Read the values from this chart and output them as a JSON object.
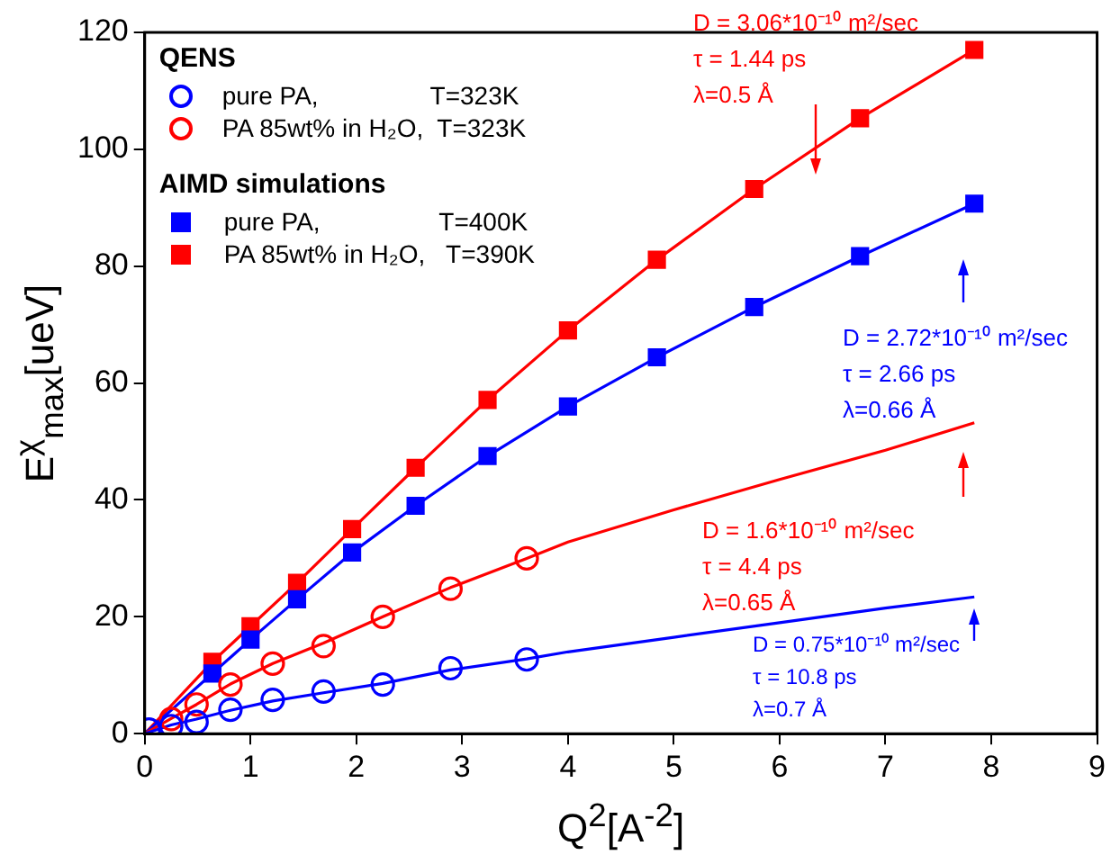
{
  "chart_data": {
    "type": "scatter",
    "xlabel": "Q$^{2}$[A$^{-2}$]",
    "ylabel": "E$^{χ}$$_{max}$[ueV]",
    "xlim": [
      0,
      9
    ],
    "xticks": [
      0,
      1,
      2,
      3,
      4,
      5,
      6,
      7,
      8,
      9
    ],
    "ylim": [
      0,
      120
    ],
    "yticks": [
      0,
      20,
      40,
      60,
      80,
      100,
      120
    ],
    "grid": false,
    "legend": "top left",
    "legend_title": "QENS",
    "series": [
      {
        "name": "pure PA,                T=323K",
        "type": "scatter",
        "marker": "circle",
        "color": "#0000ff",
        "x": [
          0.04,
          0.25,
          0.49,
          0.81,
          1.21,
          1.69,
          2.25,
          2.89,
          3.61
        ],
        "values": [
          0.7,
          1.3,
          2,
          4.1,
          5.8,
          7.2,
          8.4,
          11.2,
          12.7
        ]
      },
      {
        "name": "PA 85wt% in H₂O,  T=323K",
        "type": "scatter",
        "marker": "circle",
        "color": "#ff0000",
        "x": [
          0.25,
          0.49,
          0.81,
          1.21,
          1.69,
          2.25,
          2.89,
          3.61
        ],
        "values": [
          2.5,
          5,
          8.4,
          12,
          15,
          20,
          24.8,
          30
        ]
      },
      {
        "name": "pure PA,                 T=400K",
        "type": "scatter",
        "marker": "square",
        "color": "#0000ff",
        "x": [
          0.64,
          1,
          1.44,
          1.96,
          2.56,
          3.24,
          4,
          4.84,
          5.76,
          6.76,
          7.84
        ],
        "values": [
          10.3,
          16.1,
          23,
          31,
          39,
          47.5,
          56,
          64.4,
          73,
          81.7,
          90.7
        ]
      },
      {
        "name": "PA 85wt% in H₂O,   T=390K",
        "type": "scatter",
        "marker": "square",
        "color": "#ff0000",
        "x": [
          0.64,
          1,
          1.44,
          1.96,
          2.56,
          3.24,
          4,
          4.84,
          5.76,
          6.76,
          7.84
        ],
        "values": [
          12.3,
          18.4,
          25.8,
          35,
          45.5,
          57.1,
          69,
          81.1,
          93.2,
          105.3,
          117
        ]
      },
      {
        "type": "line",
        "marker": "none",
        "color": "#0000ff",
        "x": [
          0,
          0.25,
          0.49,
          0.81,
          1.21,
          1.69,
          2.25,
          2.89,
          3.61,
          4,
          5,
          6,
          7,
          7.84
        ],
        "values": [
          0,
          1.5,
          2.5,
          4,
          5.6,
          7,
          8.6,
          10.9,
          12.8,
          14,
          16.5,
          19,
          21.5,
          23.4
        ]
      },
      {
        "type": "line",
        "marker": "none",
        "color": "#ff0000",
        "x": [
          0,
          0.25,
          0.49,
          0.81,
          1.21,
          1.69,
          2.25,
          2.89,
          3.61,
          4,
          5,
          6,
          7,
          7.84
        ],
        "values": [
          0,
          2.6,
          5,
          8.5,
          12,
          15.5,
          20,
          25,
          30,
          32.8,
          38.3,
          43.5,
          48.5,
          53.2
        ]
      },
      {
        "type": "line",
        "marker": "none",
        "color": "#0000ff",
        "x": [
          0,
          0.64,
          1,
          1.44,
          1.96,
          2.56,
          3.24,
          4,
          4.84,
          5.76,
          6.76,
          7.84
        ],
        "values": [
          0,
          10.3,
          16.1,
          23,
          31,
          39,
          47.5,
          56,
          64.4,
          73,
          81.7,
          90.7
        ]
      },
      {
        "type": "line",
        "marker": "none",
        "color": "#ff0000",
        "x": [
          0,
          0.64,
          1,
          1.44,
          1.96,
          2.56,
          3.24,
          4,
          4.84,
          5.76,
          6.76,
          7.84
        ],
        "values": [
          0,
          12.3,
          18.4,
          25.8,
          35,
          45.5,
          57.1,
          69,
          81.1,
          93.2,
          105.3,
          117
        ]
      }
    ],
    "annotations": [
      "AIMD simulations",
      "D = 3.06*10⁻¹⁰ m²/sec\nτ = 1.44 ps\nλ=0.5 Å",
      "D = 2.72*10⁻¹⁰ m²/sec\nτ = 2.66 ps\nλ=0.66 Å",
      "D = 1.6*10⁻¹⁰ m²/sec\nτ = 4.4 ps\nλ=0.65 Å",
      "D = 0.75*10⁻¹⁰ m²/sec\nτ = 10.8 ps\nλ=0.7 Å"
    ]
  }
}
